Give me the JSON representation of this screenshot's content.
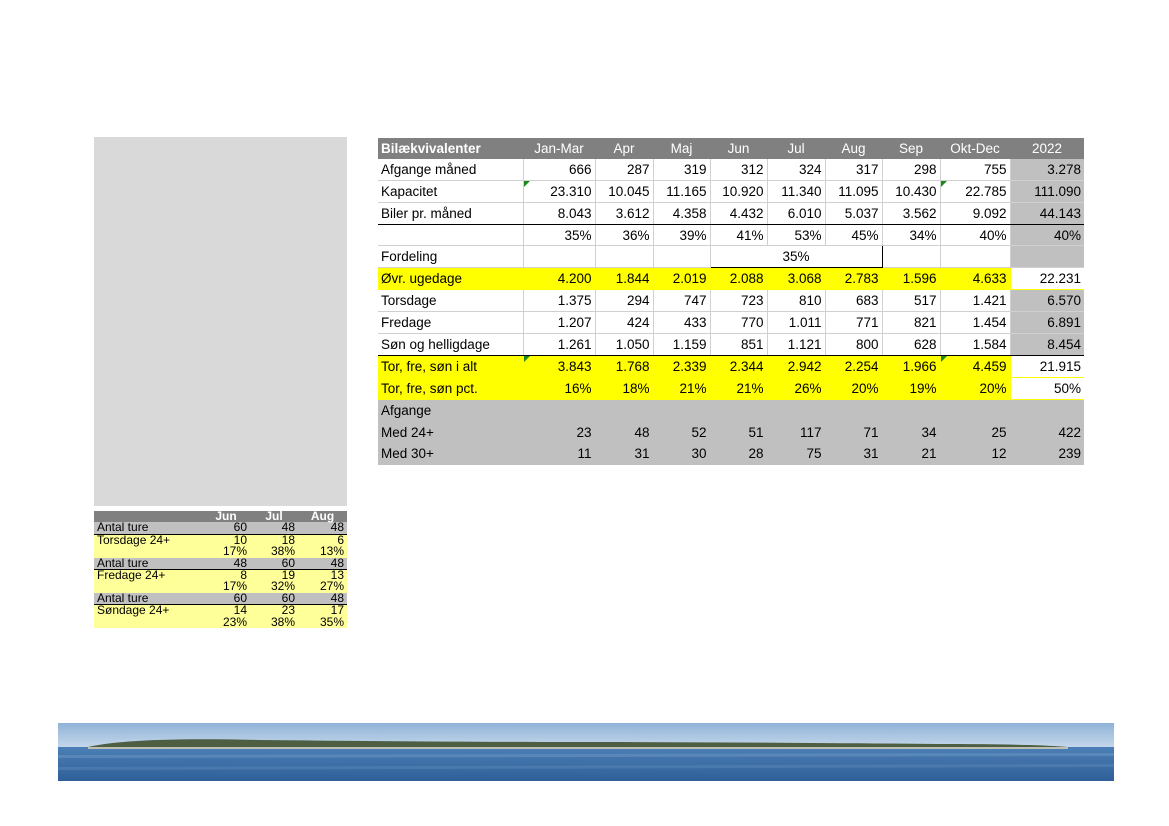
{
  "main_table": {
    "header": [
      "Bilækvivalenter",
      "Jan-Mar",
      "Apr",
      "Maj",
      "Jun",
      "Jul",
      "Aug",
      "Sep",
      "Okt-Dec",
      "2022"
    ],
    "afgange": {
      "label": "Afgange måned",
      "values": [
        "666",
        "287",
        "319",
        "312",
        "324",
        "317",
        "298",
        "755"
      ],
      "year": "3.278"
    },
    "kapacitet": {
      "label": "Kapacitet",
      "values": [
        "23.310",
        "10.045",
        "11.165",
        "10.920",
        "11.340",
        "11.095",
        "10.430",
        "22.785"
      ],
      "year": "111.090"
    },
    "biler": {
      "label": "Biler pr. måned",
      "values": [
        "8.043",
        "3.612",
        "4.358",
        "4.432",
        "6.010",
        "5.037",
        "3.562",
        "9.092"
      ],
      "year": "44.143"
    },
    "pct": {
      "label": "",
      "values": [
        "35%",
        "36%",
        "39%",
        "41%",
        "53%",
        "45%",
        "34%",
        "40%"
      ],
      "year": "40%"
    },
    "fordeling": {
      "label": "Fordeling",
      "merged": "35%"
    },
    "ovr": {
      "label": "Øvr. ugedage",
      "values": [
        "4.200",
        "1.844",
        "2.019",
        "2.088",
        "3.068",
        "2.783",
        "1.596",
        "4.633"
      ],
      "year": "22.231"
    },
    "torsdage": {
      "label": "Torsdage",
      "values": [
        "1.375",
        "294",
        "747",
        "723",
        "810",
        "683",
        "517",
        "1.421"
      ],
      "year": "6.570"
    },
    "fredage": {
      "label": "Fredage",
      "values": [
        "1.207",
        "424",
        "433",
        "770",
        "1.011",
        "771",
        "821",
        "1.454"
      ],
      "year": "6.891"
    },
    "son": {
      "label": "Søn og helligdage",
      "values": [
        "1.261",
        "1.050",
        "1.159",
        "851",
        "1.121",
        "800",
        "628",
        "1.584"
      ],
      "year": "8.454"
    },
    "tfs_alt": {
      "label": "Tor, fre, søn i alt",
      "values": [
        "3.843",
        "1.768",
        "2.339",
        "2.344",
        "2.942",
        "2.254",
        "1.966",
        "4.459"
      ],
      "year": "21.915"
    },
    "tfs_pct": {
      "label": "Tor, fre, søn pct.",
      "values": [
        "16%",
        "18%",
        "21%",
        "21%",
        "26%",
        "20%",
        "19%",
        "20%"
      ],
      "year": "50%"
    },
    "afgange2": {
      "label": "Afgange"
    },
    "med24": {
      "label": "Med 24+",
      "values": [
        "23",
        "48",
        "52",
        "51",
        "117",
        "71",
        "34",
        "25"
      ],
      "year": "422"
    },
    "med30": {
      "label": "Med 30+",
      "values": [
        "11",
        "31",
        "30",
        "28",
        "75",
        "31",
        "21",
        "12"
      ],
      "year": "239"
    }
  },
  "small_table": {
    "header": [
      "",
      "Jun",
      "Jul",
      "Aug"
    ],
    "rows": [
      {
        "label": "Antal ture",
        "values": [
          "60",
          "48",
          "48"
        ]
      },
      {
        "label": "Torsdage 24+",
        "values": [
          "10",
          "18",
          "6"
        ]
      },
      {
        "label": "",
        "values": [
          "17%",
          "38%",
          "13%"
        ]
      },
      {
        "label": "Antal ture",
        "values": [
          "48",
          "60",
          "48"
        ]
      },
      {
        "label": "Fredage 24+",
        "values": [
          "8",
          "19",
          "13"
        ]
      },
      {
        "label": "",
        "values": [
          "17%",
          "32%",
          "27%"
        ]
      },
      {
        "label": "Antal ture",
        "values": [
          "60",
          "60",
          "48"
        ]
      },
      {
        "label": "Søndage 24+",
        "values": [
          "14",
          "23",
          "17"
        ]
      },
      {
        "label": "",
        "values": [
          "23%",
          "38%",
          "35%"
        ]
      }
    ]
  },
  "colors": {
    "header_gray": "#808080",
    "row_gray": "#c0c0c0",
    "highlight_yellow": "#ffff00",
    "light_yellow": "#ffff99",
    "panel_gray": "#d9d9d9"
  }
}
